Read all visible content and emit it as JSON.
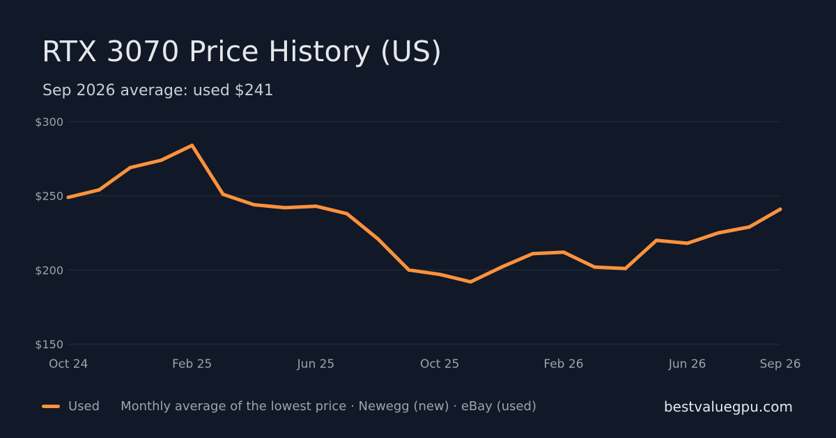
{
  "chart_data": {
    "type": "line",
    "title": "RTX 3070 Price History (US)",
    "subtitle": "Sep 2026 average: used $241",
    "xlabel": "",
    "ylabel": "",
    "x": [
      "2024-10",
      "2024-11",
      "2024-12",
      "2025-01",
      "2025-02",
      "2025-03",
      "2025-04",
      "2025-05",
      "2025-06",
      "2025-07",
      "2025-08",
      "2025-09",
      "2025-10",
      "2025-11",
      "2025-12",
      "2026-01",
      "2026-02",
      "2026-03",
      "2026-04",
      "2026-05",
      "2026-06",
      "2026-07",
      "2026-08",
      "2026-09"
    ],
    "x_ticks": [
      "Oct 24",
      "Feb 25",
      "Jun 25",
      "Oct 25",
      "Feb 26",
      "Jun 26",
      "Sep 26"
    ],
    "x_tick_months": [
      "2024-10",
      "2025-02",
      "2025-06",
      "2025-10",
      "2026-02",
      "2026-06",
      "2026-09"
    ],
    "y_ticks": [
      150,
      200,
      250,
      300
    ],
    "y_tick_labels": [
      "$150",
      "$200",
      "$250",
      "$300"
    ],
    "ylim": [
      150,
      300
    ],
    "grid": true,
    "legend_position": "bottom-left",
    "series": [
      {
        "name": "Used",
        "color": "#fb923c",
        "values": [
          249,
          254,
          269,
          274,
          284,
          251,
          244,
          242,
          243,
          238,
          221,
          200,
          197,
          192,
          202,
          211,
          212,
          202,
          201,
          220,
          218,
          225,
          229,
          241
        ]
      }
    ]
  },
  "footer": {
    "note": "Monthly average of the lowest price · Newegg (new) · eBay (used)",
    "brand": "bestvaluegpu.com"
  },
  "colors": {
    "background": "#111827",
    "grid": "#1f2937",
    "text": "#e5e7eb",
    "muted": "#9ca3af"
  }
}
